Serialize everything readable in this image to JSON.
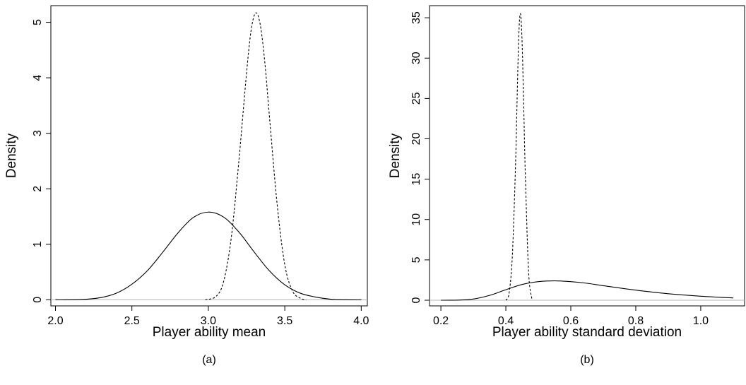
{
  "chart_data": [
    {
      "type": "line",
      "panel_label": "(a)",
      "xlabel": "Player ability mean",
      "ylabel": "Density",
      "xlim": [
        1.97,
        4.04
      ],
      "ylim": [
        -0.11,
        5.3
      ],
      "xticks": [
        "2.0",
        "2.5",
        "3.0",
        "3.5",
        "4.0"
      ],
      "yticks": [
        "0",
        "1",
        "2",
        "3",
        "4",
        "5"
      ],
      "baseline": 0,
      "series": [
        {
          "line_style": "solid",
          "x": [
            2.0,
            2.1,
            2.2,
            2.3,
            2.4,
            2.5,
            2.6,
            2.7,
            2.8,
            2.9,
            3.0,
            3.1,
            3.2,
            3.3,
            3.4,
            3.5,
            3.6,
            3.7,
            3.8,
            3.9,
            4.0
          ],
          "y": [
            0.0,
            0.0,
            0.01,
            0.04,
            0.12,
            0.28,
            0.52,
            0.85,
            1.2,
            1.48,
            1.58,
            1.49,
            1.22,
            0.86,
            0.52,
            0.27,
            0.12,
            0.05,
            0.01,
            0.0,
            0.0
          ]
        },
        {
          "line_style": "dashed",
          "x": [
            2.98,
            3.05,
            3.1,
            3.15,
            3.2,
            3.25,
            3.28,
            3.31,
            3.34,
            3.37,
            3.4,
            3.45,
            3.5,
            3.55,
            3.6,
            3.64
          ],
          "y": [
            0.0,
            0.06,
            0.33,
            1.12,
            2.51,
            4.09,
            4.86,
            5.17,
            4.95,
            4.26,
            3.29,
            1.72,
            0.63,
            0.16,
            0.03,
            0.0
          ]
        }
      ]
    },
    {
      "type": "line",
      "panel_label": "(b)",
      "xlabel": "Player ability standard deviation",
      "ylabel": "Density",
      "xlim": [
        0.165,
        1.135
      ],
      "ylim": [
        -0.7,
        36.5
      ],
      "xticks": [
        "0.2",
        "0.4",
        "0.6",
        "0.8",
        "1.0"
      ],
      "yticks": [
        "0",
        "5",
        "10",
        "15",
        "20",
        "25",
        "30",
        "35"
      ],
      "baseline": 0,
      "series": [
        {
          "line_style": "solid",
          "x": [
            0.2,
            0.25,
            0.3,
            0.35,
            0.4,
            0.45,
            0.5,
            0.55,
            0.6,
            0.65,
            0.7,
            0.8,
            0.9,
            1.0,
            1.1
          ],
          "y": [
            0.0,
            0.02,
            0.15,
            0.6,
            1.3,
            1.95,
            2.3,
            2.4,
            2.3,
            2.1,
            1.8,
            1.25,
            0.8,
            0.5,
            0.28
          ]
        },
        {
          "line_style": "dashed",
          "x": [
            0.4,
            0.41,
            0.42,
            0.43,
            0.435,
            0.44,
            0.445,
            0.45,
            0.455,
            0.46,
            0.47,
            0.48
          ],
          "y": [
            0.0,
            0.9,
            5.5,
            17.0,
            25.5,
            33.0,
            35.5,
            32.0,
            24.0,
            15.5,
            3.5,
            0.2
          ]
        }
      ]
    }
  ]
}
